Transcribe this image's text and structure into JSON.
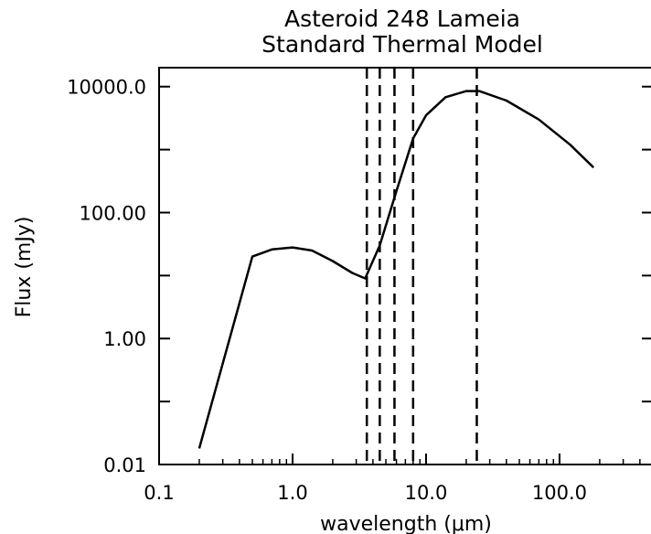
{
  "chart_data": {
    "type": "line",
    "title": "Asteroid 248 Lameia",
    "subtitle": "Standard Thermal Model",
    "xlabel": "wavelength (μm)",
    "ylabel": "Flux (mJy)",
    "xscale": "log",
    "yscale": "log",
    "xlim": [
      0.1,
      500
    ],
    "ylim": [
      0.01,
      20000
    ],
    "x_tick_labels": [
      {
        "value": 0.1,
        "label": "0.1"
      },
      {
        "value": 1,
        "label": "1.0"
      },
      {
        "value": 10,
        "label": "10.0"
      },
      {
        "value": 100,
        "label": "100.0"
      }
    ],
    "y_tick_labels": [
      {
        "value": 0.01,
        "label": "0.01"
      },
      {
        "value": 1,
        "label": "1.00"
      },
      {
        "value": 100,
        "label": "100.00"
      },
      {
        "value": 10000,
        "label": "10000.0"
      }
    ],
    "grid": false,
    "series": [
      {
        "x": [
          0.2,
          0.5,
          0.7,
          1.0,
          1.4,
          2.0,
          2.8,
          3.5,
          4.5,
          6.0,
          8.0,
          10.0,
          14.0,
          20.0,
          25.0,
          40.0,
          70.0,
          120.0,
          180.0
        ],
        "y": [
          0.018,
          20,
          26,
          28,
          25,
          17,
          11,
          9,
          30,
          220,
          1500,
          3500,
          6800,
          8500,
          8500,
          6000,
          3000,
          1200,
          520
        ]
      }
    ],
    "vertical_lines": [
      3.6,
      4.5,
      5.8,
      8.0,
      24.0
    ],
    "line_color": "#000000"
  }
}
